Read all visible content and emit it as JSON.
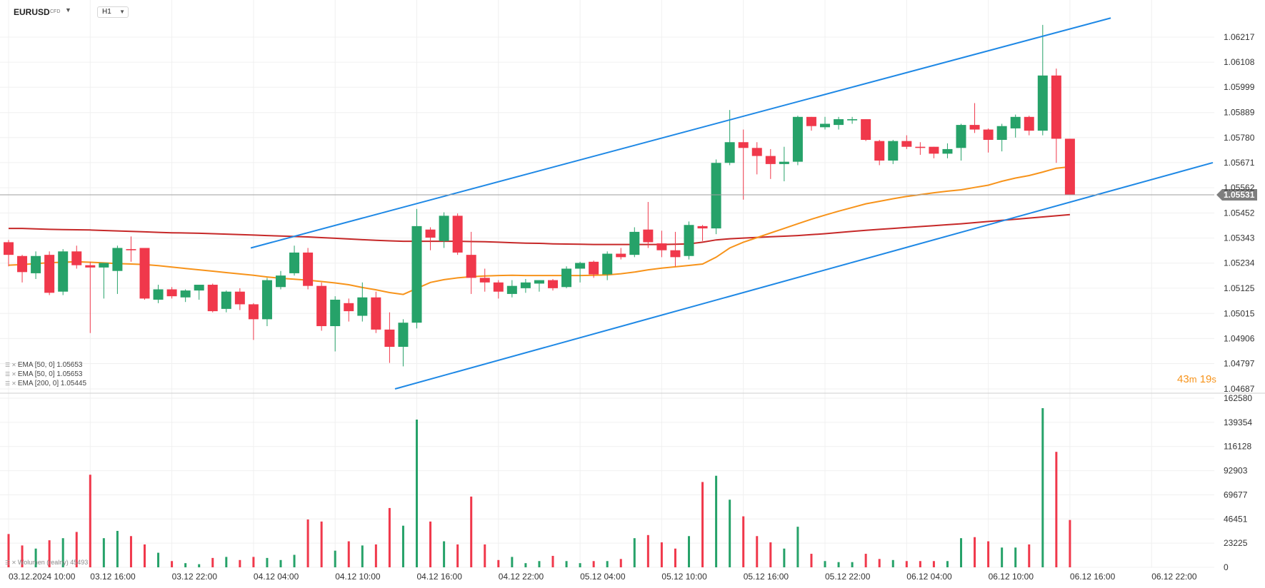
{
  "header": {
    "symbol": "EURUSD",
    "instrument_type": "CFD",
    "timeframe": "H1"
  },
  "indicators": [
    {
      "label": "EMA [50, 0] 1.05653",
      "color": "#f7931a"
    },
    {
      "label": "EMA [50, 0] 1.05653",
      "color": "#f7931a"
    },
    {
      "label": "EMA [200, 0] 1.05445",
      "color": "#c62828"
    }
  ],
  "volume_label": "Wolumen (realny) 45493",
  "countdown": {
    "minutes": "43",
    "m": "m",
    "seconds": "19",
    "s": "s"
  },
  "colors": {
    "up": "#26a269",
    "down": "#f0384b",
    "ema50": "#f7931a",
    "ema200": "#c62828",
    "channel": "#1e88e5",
    "price_line": "#9e9e9e"
  },
  "chart_data": {
    "type": "candlestick",
    "current_price": "1.05531",
    "price_axis": {
      "ticks": [
        "1.06217",
        "1.06108",
        "1.05999",
        "1.05889",
        "1.05780",
        "1.05671",
        "1.05562",
        "1.05452",
        "1.05343",
        "1.05234",
        "1.05125",
        "1.05015",
        "1.04906",
        "1.04797",
        "1.04687"
      ],
      "ylim": [
        1.04687,
        1.06217
      ]
    },
    "volume_axis": {
      "ticks": [
        "162580",
        "139354",
        "116128",
        "92903",
        "69677",
        "46451",
        "23225",
        "0"
      ],
      "ylim": [
        0,
        162580
      ]
    },
    "time_axis": {
      "labels": [
        "03.12.2024  10:00",
        "03.12  16:00",
        "03.12  22:00",
        "04.12  04:00",
        "04.12  10:00",
        "04.12  16:00",
        "04.12  22:00",
        "05.12  04:00",
        "05.12  10:00",
        "05.12  16:00",
        "05.12  22:00",
        "06.12  04:00",
        "06.12  10:00",
        "06.12  16:00",
        "06.12  22:00"
      ]
    },
    "candles": [
      [
        1.05325,
        1.05335,
        1.0522,
        1.0527,
        32000
      ],
      [
        1.05265,
        1.0527,
        1.0515,
        1.05195,
        21000
      ],
      [
        1.0519,
        1.05285,
        1.05165,
        1.05265,
        18000
      ],
      [
        1.0527,
        1.05285,
        1.05095,
        1.05105,
        26000
      ],
      [
        1.0511,
        1.05295,
        1.05095,
        1.05285,
        28000
      ],
      [
        1.05285,
        1.0531,
        1.0521,
        1.05225,
        34000
      ],
      [
        1.05225,
        1.0524,
        1.0493,
        1.05215,
        89000
      ],
      [
        1.05215,
        1.05235,
        1.0508,
        1.05235,
        28000
      ],
      [
        1.052,
        1.0531,
        1.051,
        1.053,
        35000
      ],
      [
        1.05295,
        1.0535,
        1.0524,
        1.0529,
        30000
      ],
      [
        1.053,
        1.053,
        1.05075,
        1.0508,
        22000
      ],
      [
        1.05075,
        1.0514,
        1.0506,
        1.0512,
        14000
      ],
      [
        1.0512,
        1.0513,
        1.0508,
        1.0509,
        6000
      ],
      [
        1.05085,
        1.0512,
        1.05065,
        1.05115,
        4000
      ],
      [
        1.05115,
        1.05135,
        1.05075,
        1.0514,
        3000
      ],
      [
        1.0514,
        1.05145,
        1.0502,
        1.05025,
        9000
      ],
      [
        1.05035,
        1.05115,
        1.0502,
        1.0511,
        10000
      ],
      [
        1.0511,
        1.05125,
        1.0503,
        1.05055,
        7000
      ],
      [
        1.05055,
        1.0506,
        1.049,
        1.0499,
        10000
      ],
      [
        1.0499,
        1.0517,
        1.0496,
        1.0516,
        9000
      ],
      [
        1.0513,
        1.052,
        1.0512,
        1.0518,
        7000
      ],
      [
        1.0519,
        1.0531,
        1.0518,
        1.0528,
        12000
      ],
      [
        1.0528,
        1.053,
        1.0512,
        1.05135,
        46000
      ],
      [
        1.05135,
        1.0515,
        1.0494,
        1.0496,
        44000
      ],
      [
        1.0496,
        1.0509,
        1.0485,
        1.05075,
        16000
      ],
      [
        1.0506,
        1.0508,
        1.0498,
        1.05025,
        25000
      ],
      [
        1.05005,
        1.0515,
        1.0498,
        1.05085,
        21000
      ],
      [
        1.05085,
        1.0511,
        1.0493,
        1.04945,
        22000
      ],
      [
        1.04945,
        1.0502,
        1.048,
        1.0487,
        57000
      ],
      [
        1.0487,
        1.0499,
        1.04785,
        1.04975,
        40000
      ],
      [
        1.04975,
        1.0547,
        1.0495,
        1.05395,
        142000
      ],
      [
        1.0538,
        1.0539,
        1.0529,
        1.05345,
        44000
      ],
      [
        1.0533,
        1.05455,
        1.053,
        1.0544,
        25000
      ],
      [
        1.0544,
        1.0545,
        1.0527,
        1.0528,
        22000
      ],
      [
        1.0527,
        1.0537,
        1.051,
        1.0517,
        68000
      ],
      [
        1.0517,
        1.0521,
        1.0511,
        1.0515,
        22000
      ],
      [
        1.0515,
        1.0516,
        1.0508,
        1.0511,
        7000
      ],
      [
        1.051,
        1.0516,
        1.05085,
        1.05135,
        10000
      ],
      [
        1.05125,
        1.05165,
        1.05105,
        1.0515,
        4000
      ],
      [
        1.05145,
        1.0516,
        1.0511,
        1.0516,
        6000
      ],
      [
        1.0516,
        1.05165,
        1.05115,
        1.05125,
        11000
      ],
      [
        1.0513,
        1.0522,
        1.05125,
        1.0521,
        6000
      ],
      [
        1.0521,
        1.0524,
        1.0515,
        1.05235,
        4000
      ],
      [
        1.0524,
        1.05245,
        1.0517,
        1.05185,
        6000
      ],
      [
        1.05185,
        1.05285,
        1.0516,
        1.05275,
        6000
      ],
      [
        1.05275,
        1.053,
        1.0525,
        1.0526,
        8000
      ],
      [
        1.0527,
        1.0539,
        1.0526,
        1.0537,
        28000
      ],
      [
        1.0538,
        1.055,
        1.053,
        1.05325,
        31000
      ],
      [
        1.0532,
        1.05375,
        1.0526,
        1.0529,
        24000
      ],
      [
        1.0529,
        1.0537,
        1.0522,
        1.0526,
        18000
      ],
      [
        1.05265,
        1.05415,
        1.0525,
        1.054,
        30000
      ],
      [
        1.05395,
        1.054,
        1.0533,
        1.05385,
        82000
      ],
      [
        1.05385,
        1.05685,
        1.0536,
        1.0567,
        88000
      ],
      [
        1.0567,
        1.059,
        1.0566,
        1.0576,
        65000
      ],
      [
        1.0576,
        1.05815,
        1.0551,
        1.05735,
        49000
      ],
      [
        1.05735,
        1.0576,
        1.0562,
        1.057,
        30000
      ],
      [
        1.057,
        1.0573,
        1.056,
        1.05665,
        24000
      ],
      [
        1.05665,
        1.0574,
        1.0559,
        1.05675,
        18000
      ],
      [
        1.05675,
        1.05875,
        1.0566,
        1.0587,
        39000
      ],
      [
        1.0587,
        1.0587,
        1.0581,
        1.0583,
        13000
      ],
      [
        1.05825,
        1.0587,
        1.05815,
        1.0584,
        6000
      ],
      [
        1.05835,
        1.0587,
        1.05815,
        1.0586,
        5000
      ],
      [
        1.05855,
        1.0587,
        1.0584,
        1.0586,
        5000
      ],
      [
        1.0586,
        1.0586,
        1.05765,
        1.0577,
        13000
      ],
      [
        1.05765,
        1.0577,
        1.0566,
        1.0568,
        8000
      ],
      [
        1.0568,
        1.0577,
        1.05665,
        1.05765,
        7000
      ],
      [
        1.05765,
        1.0579,
        1.0573,
        1.0574,
        6000
      ],
      [
        1.0574,
        1.0576,
        1.05705,
        1.05735,
        6000
      ],
      [
        1.0574,
        1.0574,
        1.0569,
        1.0571,
        6000
      ],
      [
        1.0571,
        1.05755,
        1.0569,
        1.0573,
        6000
      ],
      [
        1.05735,
        1.0584,
        1.0568,
        1.05835,
        28000
      ],
      [
        1.05835,
        1.0593,
        1.058,
        1.05815,
        29000
      ],
      [
        1.05815,
        1.0582,
        1.05715,
        1.0577,
        25000
      ],
      [
        1.0577,
        1.0584,
        1.0572,
        1.0583,
        19000
      ],
      [
        1.0582,
        1.0588,
        1.0578,
        1.0587,
        19000
      ],
      [
        1.0587,
        1.05875,
        1.0579,
        1.0581,
        22000
      ],
      [
        1.0581,
        1.0627,
        1.0579,
        1.0605,
        153000
      ],
      [
        1.0605,
        1.0608,
        1.0567,
        1.05775,
        111000
      ],
      [
        1.05775,
        1.05775,
        1.05531,
        1.05531,
        45493
      ]
    ],
    "ema50": [
      1.05225,
      1.05228,
      1.05232,
      1.05236,
      1.05238,
      1.0524,
      1.05238,
      1.05235,
      1.05232,
      1.0523,
      1.05228,
      1.05223,
      1.05217,
      1.05211,
      1.05205,
      1.05199,
      1.05193,
      1.05187,
      1.05181,
      1.05174,
      1.05168,
      1.05164,
      1.0516,
      1.05154,
      1.05148,
      1.0514,
      1.05128,
      1.05118,
      1.05106,
      1.05098,
      1.05124,
      1.0515,
      1.05162,
      1.0517,
      1.05175,
      1.05178,
      1.0518,
      1.05181,
      1.0518,
      1.0518,
      1.0518,
      1.0518,
      1.0518,
      1.05181,
      1.05183,
      1.05188,
      1.05195,
      1.05205,
      1.05212,
      1.05218,
      1.05224,
      1.0523,
      1.0526,
      1.053,
      1.05325,
      1.05345,
      1.05365,
      1.05385,
      1.05405,
      1.05425,
      1.05443,
      1.0546,
      1.05476,
      1.05492,
      1.05503,
      1.05514,
      1.05524,
      1.05532,
      1.0554,
      1.05547,
      1.05553,
      1.05563,
      1.05573,
      1.0559,
      1.05604,
      1.05615,
      1.0563,
      1.05647,
      1.05653
    ],
    "ema200": [
      1.05385,
      1.05385,
      1.05383,
      1.05381,
      1.0538,
      1.05379,
      1.05378,
      1.05376,
      1.05374,
      1.05372,
      1.0537,
      1.05368,
      1.05366,
      1.05365,
      1.05364,
      1.05362,
      1.0536,
      1.05358,
      1.05356,
      1.05354,
      1.05352,
      1.0535,
      1.05348,
      1.05345,
      1.05342,
      1.05339,
      1.05336,
      1.05333,
      1.05331,
      1.05329,
      1.05329,
      1.05329,
      1.05329,
      1.05329,
      1.05328,
      1.05327,
      1.05325,
      1.05323,
      1.05321,
      1.0532,
      1.05318,
      1.05317,
      1.05316,
      1.05315,
      1.05315,
      1.05315,
      1.05315,
      1.05315,
      1.05315,
      1.05316,
      1.05318,
      1.05325,
      1.05335,
      1.0534,
      1.05343,
      1.05346,
      1.05349,
      1.05351,
      1.05354,
      1.05358,
      1.05362,
      1.05367,
      1.05372,
      1.05377,
      1.05381,
      1.05385,
      1.05389,
      1.05393,
      1.05397,
      1.05401,
      1.05405,
      1.0541,
      1.05415,
      1.0542,
      1.05425,
      1.0543,
      1.05435,
      1.0544,
      1.05445
    ],
    "channel": {
      "upper": [
        [
          17.8,
          1.053
        ],
        [
          81.0,
          1.063
        ]
      ],
      "lower": [
        [
          28.4,
          1.04687
        ],
        [
          88.5,
          1.05671
        ]
      ]
    }
  }
}
